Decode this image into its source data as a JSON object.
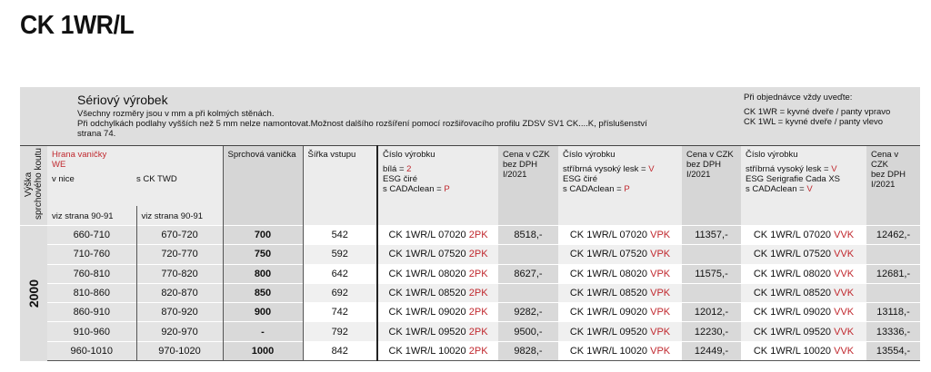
{
  "title": "CK 1WR/L",
  "band": {
    "heading": "Sériový výrobek",
    "line1": "Všechny rozměry jsou v mm a při kolmých stěnách.",
    "line2": "Při odchylkách podlahy vyšších než 5 mm nelze namontovat.Možnost dalšího rozšíření pomocí rozšiřovacího profilu ZDSV SV1 CK....K, příslušenství",
    "line3": "strana 74.",
    "order_title": "Při objednávce vždy uveďte:",
    "order1": "CK 1WR = kyvné dveře / panty vpravo",
    "order2": "CK 1WL = kyvné dveře / panty vlevo"
  },
  "headers": {
    "height": "Výška sprchového koutu",
    "edge": "Hrana vaničky",
    "edge_code": "WE",
    "niche": "v nice",
    "twd": "s CK TWD",
    "niche_ref": "viz strana 90-91",
    "twd_ref": "viz strana 90-91",
    "tray": "Sprchová vanička",
    "entry": "Šířka vstupu",
    "prod1": {
      "t": "Číslo výrobku",
      "a": "bílá = ",
      "ac": "2",
      "b": "ESG čiré",
      "c": "s CADAclean = ",
      "cc": "P"
    },
    "prod2": {
      "t": "Číslo výrobku",
      "a": "stříbrná vysoký lesk = ",
      "ac": "V",
      "b": "ESG čiré",
      "c": "s CADAclean = ",
      "cc": "P"
    },
    "prod3": {
      "t": "Číslo výrobku",
      "a": "stříbrná vysoký lesk = ",
      "ac": "V",
      "b": "ESG Serigrafie Cada XS",
      "c": "s CADAclean = ",
      "cc": "V"
    },
    "price1": "Cena v CZK",
    "price2": "bez DPH",
    "price3": "I/2021"
  },
  "height_value": "2000",
  "rows": [
    {
      "niche": "660-710",
      "twd": "670-720",
      "tray": "700",
      "entry": "542",
      "code": "CK 1WR/L 07020",
      "p1": "8518,-",
      "p2": "11357,-",
      "p3": "12462,-"
    },
    {
      "niche": "710-760",
      "twd": "720-770",
      "tray": "750",
      "entry": "592",
      "code": "CK 1WR/L 07520",
      "p1": "",
      "p2": "",
      "p3": ""
    },
    {
      "niche": "760-810",
      "twd": "770-820",
      "tray": "800",
      "entry": "642",
      "code": "CK 1WR/L 08020",
      "p1": "8627,-",
      "p2": "11575,-",
      "p3": "12681,-"
    },
    {
      "niche": "810-860",
      "twd": "820-870",
      "tray": "850",
      "entry": "692",
      "code": "CK 1WR/L 08520",
      "p1": "",
      "p2": "",
      "p3": ""
    },
    {
      "niche": "860-910",
      "twd": "870-920",
      "tray": "900",
      "entry": "742",
      "code": "CK 1WR/L 09020",
      "p1": "9282,-",
      "p2": "12012,-",
      "p3": "13118,-"
    },
    {
      "niche": "910-960",
      "twd": "920-970",
      "tray": "-",
      "entry": "792",
      "code": "CK 1WR/L 09520",
      "p1": "9500,-",
      "p2": "12230,-",
      "p3": "13336,-"
    },
    {
      "niche": "960-1010",
      "twd": "970-1020",
      "tray": "1000",
      "entry": "842",
      "code": "CK 1WR/L 10020",
      "p1": "9828,-",
      "p2": "12449,-",
      "p3": "13554,-"
    }
  ],
  "suffixes": [
    "2PK",
    "VPK",
    "VVK"
  ],
  "colors": {
    "accent": "#c0282e"
  }
}
